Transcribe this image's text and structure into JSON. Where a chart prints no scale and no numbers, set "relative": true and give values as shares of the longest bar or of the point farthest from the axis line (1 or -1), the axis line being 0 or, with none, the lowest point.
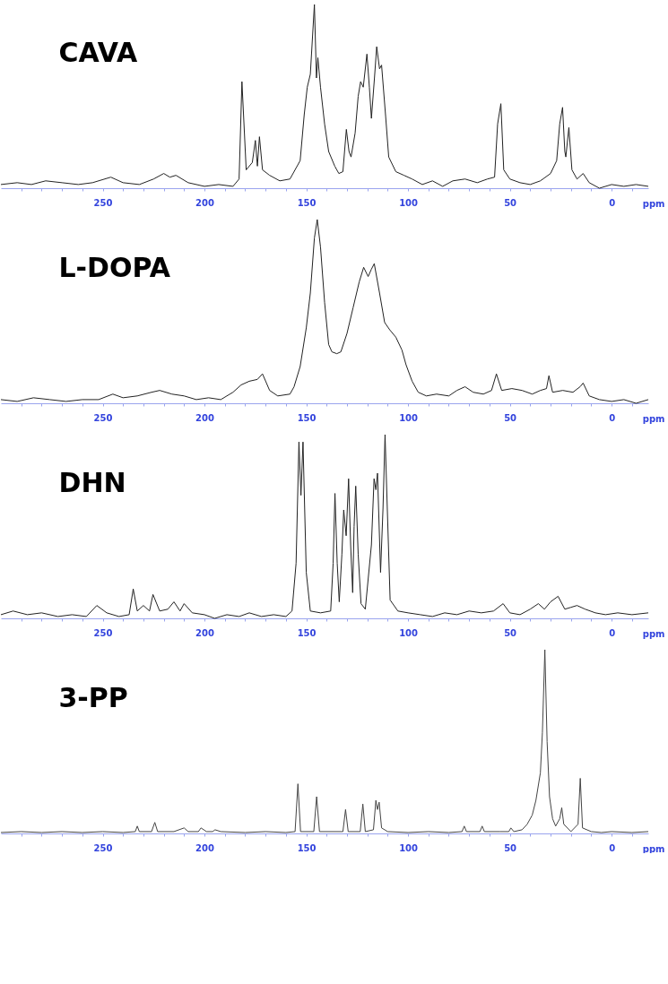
{
  "chart_data": [
    {
      "type": "line",
      "title": "CAVA",
      "xlabel": "ppm",
      "relative": true,
      "color": "#222222",
      "xlim": [
        300,
        -18
      ],
      "xticks": [
        {
          "value": 290,
          "label": null
        },
        {
          "value": 280,
          "label": null
        },
        {
          "value": 270,
          "label": null
        },
        {
          "value": 260,
          "label": null
        },
        250,
        {
          "value": 240,
          "label": null
        },
        {
          "value": 230,
          "label": null
        },
        {
          "value": 220,
          "label": null
        },
        {
          "value": 210,
          "label": null
        },
        200,
        {
          "value": 190,
          "label": null
        },
        {
          "value": 180,
          "label": null
        },
        {
          "value": 170,
          "label": null
        },
        {
          "value": 160,
          "label": null
        },
        150,
        {
          "value": 140,
          "label": null
        },
        {
          "value": 130,
          "label": null
        },
        {
          "value": 120,
          "label": null
        },
        {
          "value": 110,
          "label": null
        },
        100,
        {
          "value": 90,
          "label": null
        },
        {
          "value": 80,
          "label": null
        },
        {
          "value": 70,
          "label": null
        },
        {
          "value": 60,
          "label": null
        },
        50,
        {
          "value": 40,
          "label": null
        },
        {
          "value": 30,
          "label": null
        },
        {
          "value": 20,
          "label": null
        },
        {
          "value": 10,
          "label": null
        },
        0,
        {
          "value": -10,
          "label": null
        }
      ],
      "x": [
        300,
        292,
        285,
        278,
        270,
        262,
        255,
        246,
        240,
        232,
        225,
        220,
        217,
        214,
        208,
        200,
        193,
        186,
        183,
        181.6,
        179.5,
        176.5,
        175,
        174,
        173,
        171.5,
        168,
        163,
        158,
        153,
        151,
        149.5,
        148,
        146,
        145,
        144.3,
        143,
        141,
        139,
        136,
        134,
        132,
        130.3,
        129,
        128,
        126,
        124.5,
        123.3,
        122,
        120.2,
        119,
        118,
        116.5,
        115.4,
        114,
        113,
        111,
        109.5,
        106,
        102,
        98,
        93,
        88,
        83,
        78,
        72,
        66,
        61,
        57.5,
        56,
        54.4,
        53,
        50,
        45,
        40,
        35,
        30,
        27,
        25.5,
        24.1,
        23,
        22.5,
        21,
        19.5,
        17,
        14,
        11,
        6,
        0,
        -6,
        -12,
        -18
      ],
      "values": [
        0.02,
        0.03,
        0.02,
        0.04,
        0.03,
        0.02,
        0.03,
        0.06,
        0.03,
        0.02,
        0.05,
        0.08,
        0.06,
        0.07,
        0.03,
        0.01,
        0.02,
        0.01,
        0.05,
        0.58,
        0.1,
        0.14,
        0.26,
        0.12,
        0.28,
        0.1,
        0.07,
        0.04,
        0.05,
        0.15,
        0.4,
        0.55,
        0.62,
        1.0,
        0.6,
        0.71,
        0.55,
        0.35,
        0.2,
        0.12,
        0.08,
        0.09,
        0.32,
        0.2,
        0.17,
        0.3,
        0.5,
        0.58,
        0.55,
        0.73,
        0.55,
        0.38,
        0.6,
        0.77,
        0.65,
        0.67,
        0.39,
        0.17,
        0.09,
        0.07,
        0.05,
        0.02,
        0.04,
        0.01,
        0.04,
        0.05,
        0.03,
        0.05,
        0.06,
        0.35,
        0.46,
        0.1,
        0.05,
        0.03,
        0.02,
        0.04,
        0.08,
        0.15,
        0.35,
        0.44,
        0.2,
        0.17,
        0.33,
        0.1,
        0.05,
        0.08,
        0.03,
        0.0,
        0.02,
        0.01,
        0.02,
        0.01
      ]
    },
    {
      "type": "line",
      "title": "L-DOPA",
      "xlabel": "ppm",
      "relative": true,
      "color": "#222222",
      "xlim": [
        300,
        -18
      ],
      "xticks": [
        {
          "value": 290,
          "label": null
        },
        {
          "value": 280,
          "label": null
        },
        {
          "value": 270,
          "label": null
        },
        {
          "value": 260,
          "label": null
        },
        250,
        {
          "value": 240,
          "label": null
        },
        {
          "value": 230,
          "label": null
        },
        {
          "value": 220,
          "label": null
        },
        {
          "value": 210,
          "label": null
        },
        200,
        {
          "value": 190,
          "label": null
        },
        {
          "value": 180,
          "label": null
        },
        {
          "value": 170,
          "label": null
        },
        {
          "value": 160,
          "label": null
        },
        150,
        {
          "value": 140,
          "label": null
        },
        {
          "value": 130,
          "label": null
        },
        {
          "value": 120,
          "label": null
        },
        {
          "value": 110,
          "label": null
        },
        100,
        {
          "value": 90,
          "label": null
        },
        {
          "value": 80,
          "label": null
        },
        {
          "value": 70,
          "label": null
        },
        {
          "value": 60,
          "label": null
        },
        50,
        {
          "value": 40,
          "label": null
        },
        {
          "value": 30,
          "label": null
        },
        {
          "value": 20,
          "label": null
        },
        {
          "value": 10,
          "label": null
        },
        0,
        {
          "value": -10,
          "label": null
        }
      ],
      "x": [
        300,
        292,
        284,
        276,
        268,
        260,
        252,
        245,
        240,
        233,
        226,
        222,
        216,
        210,
        204,
        198,
        192,
        186,
        182,
        178,
        174,
        171.5,
        168,
        164,
        158,
        156,
        153,
        150,
        148,
        146,
        144.6,
        143,
        141,
        139,
        137.4,
        135,
        133,
        130,
        127,
        124,
        121.8,
        119.6,
        118,
        116.6,
        114,
        111.5,
        109,
        106,
        103,
        101,
        98,
        95,
        91,
        86,
        80,
        76,
        72,
        68,
        63,
        59,
        56.6,
        54,
        49,
        44,
        39,
        35,
        32,
        30.8,
        29,
        24,
        19,
        15.5,
        14,
        11,
        6,
        0,
        -6,
        -12,
        -18
      ],
      "values": [
        0.02,
        0.01,
        0.03,
        0.02,
        0.01,
        0.02,
        0.02,
        0.05,
        0.03,
        0.04,
        0.06,
        0.07,
        0.05,
        0.04,
        0.02,
        0.03,
        0.02,
        0.06,
        0.1,
        0.12,
        0.13,
        0.16,
        0.07,
        0.04,
        0.05,
        0.09,
        0.2,
        0.41,
        0.6,
        0.9,
        1.0,
        0.85,
        0.55,
        0.32,
        0.28,
        0.27,
        0.28,
        0.38,
        0.52,
        0.66,
        0.74,
        0.69,
        0.73,
        0.76,
        0.6,
        0.44,
        0.4,
        0.36,
        0.29,
        0.21,
        0.12,
        0.06,
        0.04,
        0.05,
        0.04,
        0.07,
        0.09,
        0.06,
        0.05,
        0.07,
        0.16,
        0.07,
        0.08,
        0.07,
        0.05,
        0.07,
        0.08,
        0.15,
        0.06,
        0.07,
        0.06,
        0.09,
        0.11,
        0.04,
        0.02,
        0.01,
        0.02,
        0.0,
        0.02
      ]
    },
    {
      "type": "line",
      "title": "DHN",
      "xlabel": "ppm",
      "relative": true,
      "color": "#222222",
      "xlim": [
        300,
        -18
      ],
      "xticks": [
        {
          "value": 290,
          "label": null
        },
        {
          "value": 280,
          "label": null
        },
        {
          "value": 270,
          "label": null
        },
        {
          "value": 260,
          "label": null
        },
        250,
        {
          "value": 240,
          "label": null
        },
        {
          "value": 230,
          "label": null
        },
        {
          "value": 220,
          "label": null
        },
        {
          "value": 210,
          "label": null
        },
        200,
        {
          "value": 190,
          "label": null
        },
        {
          "value": 180,
          "label": null
        },
        {
          "value": 170,
          "label": null
        },
        {
          "value": 160,
          "label": null
        },
        150,
        {
          "value": 140,
          "label": null
        },
        {
          "value": 130,
          "label": null
        },
        {
          "value": 120,
          "label": null
        },
        {
          "value": 110,
          "label": null
        },
        100,
        {
          "value": 90,
          "label": null
        },
        {
          "value": 80,
          "label": null
        },
        {
          "value": 70,
          "label": null
        },
        {
          "value": 60,
          "label": null
        },
        50,
        {
          "value": 40,
          "label": null
        },
        {
          "value": 30,
          "label": null
        },
        {
          "value": 20,
          "label": null
        },
        {
          "value": 10,
          "label": null
        },
        0,
        {
          "value": -10,
          "label": null
        }
      ],
      "x": [
        300,
        294,
        287,
        280,
        272,
        265,
        258,
        252.9,
        248,
        242,
        237,
        235,
        233,
        230,
        227,
        225.3,
        222,
        218,
        215,
        212,
        210,
        206,
        200,
        195,
        189,
        183,
        178,
        172,
        166,
        160,
        157,
        155,
        153.6,
        152.6,
        151.6,
        150,
        148,
        143,
        138,
        136.8,
        135.9,
        134.8,
        133.8,
        132.5,
        131.6,
        130.4,
        129.2,
        128.2,
        127.2,
        126.5,
        125.7,
        124.5,
        123.1,
        121,
        118,
        116.7,
        115.8,
        115,
        113.5,
        112.3,
        111.3,
        110.2,
        108.8,
        105,
        100,
        94,
        88,
        82,
        76,
        70,
        64,
        58,
        53.3,
        50,
        45,
        40,
        36,
        33,
        30,
        26.3,
        23,
        20,
        17,
        13,
        8,
        3,
        -3,
        -10,
        -18
      ],
      "values": [
        0.02,
        0.04,
        0.02,
        0.03,
        0.01,
        0.02,
        0.01,
        0.07,
        0.03,
        0.01,
        0.02,
        0.16,
        0.04,
        0.07,
        0.04,
        0.13,
        0.04,
        0.05,
        0.09,
        0.04,
        0.08,
        0.03,
        0.02,
        0.0,
        0.02,
        0.01,
        0.03,
        0.01,
        0.02,
        0.01,
        0.04,
        0.3,
        0.96,
        0.67,
        0.96,
        0.25,
        0.04,
        0.03,
        0.04,
        0.3,
        0.68,
        0.3,
        0.09,
        0.35,
        0.59,
        0.45,
        0.76,
        0.4,
        0.14,
        0.5,
        0.72,
        0.35,
        0.08,
        0.05,
        0.4,
        0.76,
        0.7,
        0.79,
        0.25,
        0.6,
        1.0,
        0.6,
        0.1,
        0.04,
        0.03,
        0.02,
        0.01,
        0.03,
        0.02,
        0.04,
        0.03,
        0.04,
        0.08,
        0.03,
        0.02,
        0.05,
        0.08,
        0.05,
        0.09,
        0.12,
        0.05,
        0.06,
        0.07,
        0.05,
        0.03,
        0.02,
        0.03,
        0.02,
        0.03
      ]
    },
    {
      "type": "line",
      "title": "3-PP",
      "xlabel": "ppm",
      "relative": true,
      "color": "#444444",
      "xlim": [
        300,
        -18
      ],
      "xticks": [
        {
          "value": 290,
          "label": null
        },
        {
          "value": 280,
          "label": null
        },
        {
          "value": 270,
          "label": null
        },
        {
          "value": 260,
          "label": null
        },
        250,
        {
          "value": 240,
          "label": null
        },
        {
          "value": 230,
          "label": null
        },
        {
          "value": 220,
          "label": null
        },
        {
          "value": 210,
          "label": null
        },
        200,
        {
          "value": 190,
          "label": null
        },
        {
          "value": 180,
          "label": null
        },
        {
          "value": 170,
          "label": null
        },
        {
          "value": 160,
          "label": null
        },
        150,
        {
          "value": 140,
          "label": null
        },
        {
          "value": 130,
          "label": null
        },
        {
          "value": 120,
          "label": null
        },
        {
          "value": 110,
          "label": null
        },
        100,
        {
          "value": 90,
          "label": null
        },
        {
          "value": 80,
          "label": null
        },
        {
          "value": 70,
          "label": null
        },
        {
          "value": 60,
          "label": null
        },
        50,
        {
          "value": 40,
          "label": null
        },
        {
          "value": 30,
          "label": null
        },
        {
          "value": 20,
          "label": null
        },
        {
          "value": 10,
          "label": null
        },
        0,
        {
          "value": -10,
          "label": null
        }
      ],
      "x": [
        300,
        290,
        280,
        270,
        260,
        250,
        240,
        234,
        233,
        232,
        226,
        224.4,
        223,
        215,
        210,
        208,
        203,
        201.7,
        199,
        196,
        194.8,
        192,
        180,
        170,
        160,
        155.5,
        154.1,
        152.8,
        146.3,
        144.9,
        143.5,
        132,
        130.7,
        129.4,
        123.5,
        122.2,
        121,
        117,
        115.8,
        115,
        114.2,
        113,
        110,
        100,
        90,
        80,
        73.5,
        72.4,
        71.3,
        64.7,
        63.6,
        62.5,
        55,
        50.5,
        49.5,
        48,
        44,
        41.5,
        39,
        37.2,
        35,
        34,
        32.8,
        31.7,
        30.5,
        29,
        27.5,
        25.5,
        24.5,
        23.5,
        20,
        16.5,
        15.4,
        14.3,
        10,
        5,
        0,
        -10,
        -18
      ],
      "values": [
        0.005,
        0.01,
        0.005,
        0.01,
        0.005,
        0.01,
        0.005,
        0.01,
        0.04,
        0.01,
        0.01,
        0.06,
        0.01,
        0.01,
        0.03,
        0.01,
        0.01,
        0.03,
        0.01,
        0.01,
        0.02,
        0.01,
        0.005,
        0.01,
        0.005,
        0.01,
        0.27,
        0.01,
        0.01,
        0.2,
        0.01,
        0.01,
        0.13,
        0.01,
        0.01,
        0.16,
        0.01,
        0.02,
        0.18,
        0.13,
        0.17,
        0.03,
        0.01,
        0.005,
        0.01,
        0.005,
        0.01,
        0.04,
        0.01,
        0.01,
        0.04,
        0.01,
        0.01,
        0.01,
        0.03,
        0.01,
        0.02,
        0.05,
        0.1,
        0.18,
        0.33,
        0.55,
        1.0,
        0.5,
        0.2,
        0.08,
        0.04,
        0.08,
        0.14,
        0.05,
        0.01,
        0.05,
        0.3,
        0.03,
        0.01,
        0.005,
        0.01,
        0.005,
        0.01
      ]
    }
  ]
}
